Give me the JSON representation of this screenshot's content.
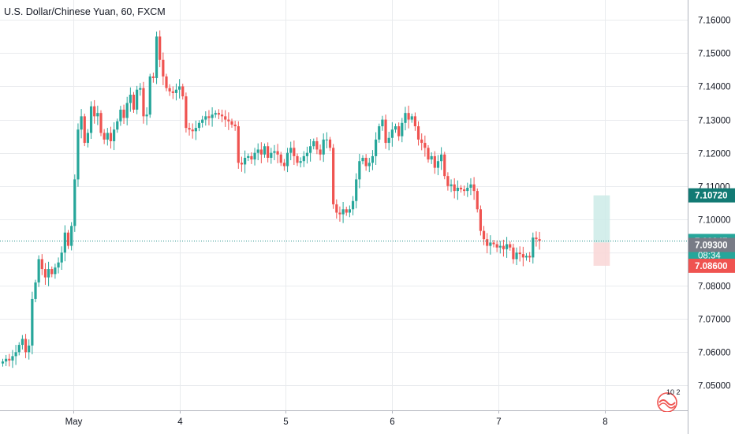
{
  "title": "U.S. Dollar/Chinese Yuan, 60, FXCM",
  "colors": {
    "up": "#26a69a",
    "down": "#ef5350",
    "grid": "#e9ebee",
    "axis_text": "#131722",
    "current_line": "#1f8f8a",
    "target_fill": "#cdebe8",
    "stop_fill": "#f9d6d6",
    "label_target": "#127a74",
    "label_price": "#26a69a",
    "label_entry": "#787b86",
    "label_stop": "#ef5350"
  },
  "price_labels": {
    "target": "7.10720",
    "current": "7.09347",
    "countdown": "08:34",
    "entry": "7.09300",
    "stop": "7.08600",
    "hidden": "7.0"
  },
  "logo_icon": "tradingview-logo-icon",
  "logo_text": "10 2",
  "chart_data": {
    "type": "candlestick",
    "title": "U.S. Dollar/Chinese Yuan, 60, FXCM",
    "interval": "60",
    "source": "FXCM",
    "y_ticks": [
      "7.16000",
      "7.15000",
      "7.14000",
      "7.13000",
      "7.12000",
      "7.11000",
      "7.10000",
      "7.09000",
      "7.08000",
      "7.07000",
      "7.06000",
      "7.05000"
    ],
    "ylim": [
      7.0425,
      7.166
    ],
    "x_ticks": [
      {
        "label": "May",
        "i": 21.5
      },
      {
        "label": "4",
        "i": 54
      },
      {
        "label": "5",
        "i": 86.5
      },
      {
        "label": "6",
        "i": 119
      },
      {
        "label": "7",
        "i": 151.5
      },
      {
        "label": "8",
        "i": 184
      }
    ],
    "candles_open_close": [
      [
        7.0566,
        7.0572
      ],
      [
        7.0572,
        7.058
      ],
      [
        7.058,
        7.0575
      ],
      [
        7.0575,
        7.0588
      ],
      [
        7.0588,
        7.06
      ],
      [
        7.06,
        7.0622
      ],
      [
        7.0622,
        7.064
      ],
      [
        7.064,
        7.06
      ],
      [
        7.06,
        7.062
      ],
      [
        7.062,
        7.076
      ],
      [
        7.076,
        7.081
      ],
      [
        7.081,
        7.088
      ],
      [
        7.088,
        7.085
      ],
      [
        7.085,
        7.0825
      ],
      [
        7.0825,
        7.085
      ],
      [
        7.085,
        7.0835
      ],
      [
        7.0835,
        7.0855
      ],
      [
        7.0855,
        7.087
      ],
      [
        7.087,
        7.09
      ],
      [
        7.09,
        7.096
      ],
      [
        7.096,
        7.092
      ],
      [
        7.092,
        7.098
      ],
      [
        7.098,
        7.112
      ],
      [
        7.112,
        7.127
      ],
      [
        7.127,
        7.131
      ],
      [
        7.131,
        7.123
      ],
      [
        7.123,
        7.126
      ],
      [
        7.126,
        7.134
      ],
      [
        7.134,
        7.131
      ],
      [
        7.131,
        7.132
      ],
      [
        7.132,
        7.126
      ],
      [
        7.126,
        7.124
      ],
      [
        7.124,
        7.126
      ],
      [
        7.126,
        7.1235
      ],
      [
        7.1235,
        7.127
      ],
      [
        7.127,
        7.1295
      ],
      [
        7.1295,
        7.133
      ],
      [
        7.133,
        7.1305
      ],
      [
        7.1305,
        7.135
      ],
      [
        7.135,
        7.1375
      ],
      [
        7.1375,
        7.133
      ],
      [
        7.133,
        7.139
      ],
      [
        7.139,
        7.1395
      ],
      [
        7.1395,
        7.131
      ],
      [
        7.131,
        7.1315
      ],
      [
        7.1315,
        7.143
      ],
      [
        7.143,
        7.1425
      ],
      [
        7.1425,
        7.155
      ],
      [
        7.155,
        7.148
      ],
      [
        7.148,
        7.143
      ],
      [
        7.143,
        7.1395
      ],
      [
        7.1395,
        7.1385
      ],
      [
        7.1385,
        7.138
      ],
      [
        7.138,
        7.139
      ],
      [
        7.139,
        7.14
      ],
      [
        7.14,
        7.137
      ],
      [
        7.137,
        7.1275
      ],
      [
        7.1275,
        7.127
      ],
      [
        7.127,
        7.1265
      ],
      [
        7.1265,
        7.1275
      ],
      [
        7.1275,
        7.129
      ],
      [
        7.129,
        7.13
      ],
      [
        7.13,
        7.131
      ],
      [
        7.131,
        7.1305
      ],
      [
        7.1305,
        7.1315
      ],
      [
        7.1315,
        7.132
      ],
      [
        7.132,
        7.1315
      ],
      [
        7.1315,
        7.131
      ],
      [
        7.131,
        7.13
      ],
      [
        7.13,
        7.1295
      ],
      [
        7.1295,
        7.1285
      ],
      [
        7.1285,
        7.128
      ],
      [
        7.128,
        7.117
      ],
      [
        7.117,
        7.1165
      ],
      [
        7.1165,
        7.1185
      ],
      [
        7.1185,
        7.119
      ],
      [
        7.119,
        7.118
      ],
      [
        7.118,
        7.12
      ],
      [
        7.12,
        7.121
      ],
      [
        7.121,
        7.1195
      ],
      [
        7.1195,
        7.122
      ],
      [
        7.122,
        7.1185
      ],
      [
        7.1185,
        7.12
      ],
      [
        7.12,
        7.1205
      ],
      [
        7.1205,
        7.1195
      ],
      [
        7.1195,
        7.117
      ],
      [
        7.117,
        7.116
      ],
      [
        7.116,
        7.12
      ],
      [
        7.12,
        7.1215
      ],
      [
        7.1215,
        7.119
      ],
      [
        7.119,
        7.117
      ],
      [
        7.117,
        7.1175
      ],
      [
        7.1175,
        7.119
      ],
      [
        7.119,
        7.12
      ],
      [
        7.12,
        7.122
      ],
      [
        7.122,
        7.1235
      ],
      [
        7.1235,
        7.121
      ],
      [
        7.121,
        7.1195
      ],
      [
        7.1195,
        7.124
      ],
      [
        7.124,
        7.124
      ],
      [
        7.124,
        7.1215
      ],
      [
        7.1215,
        7.1045
      ],
      [
        7.1045,
        7.102
      ],
      [
        7.102,
        7.1015
      ],
      [
        7.1015,
        7.103
      ],
      [
        7.103,
        7.102
      ],
      [
        7.102,
        7.103
      ],
      [
        7.103,
        7.1055
      ],
      [
        7.1055,
        7.112
      ],
      [
        7.112,
        7.1175
      ],
      [
        7.1175,
        7.1185
      ],
      [
        7.1185,
        7.116
      ],
      [
        7.116,
        7.117
      ],
      [
        7.117,
        7.119
      ],
      [
        7.119,
        7.124
      ],
      [
        7.124,
        7.128
      ],
      [
        7.128,
        7.13
      ],
      [
        7.13,
        7.123
      ],
      [
        7.123,
        7.1245
      ],
      [
        7.1245,
        7.127
      ],
      [
        7.127,
        7.128
      ],
      [
        7.128,
        7.125
      ],
      [
        7.125,
        7.129
      ],
      [
        7.129,
        7.132
      ],
      [
        7.132,
        7.13
      ],
      [
        7.13,
        7.131
      ],
      [
        7.131,
        7.128
      ],
      [
        7.128,
        7.124
      ],
      [
        7.124,
        7.123
      ],
      [
        7.123,
        7.1215
      ],
      [
        7.1215,
        7.118
      ],
      [
        7.118,
        7.119
      ],
      [
        7.119,
        7.1155
      ],
      [
        7.1155,
        7.1175
      ],
      [
        7.1175,
        7.1195
      ],
      [
        7.1195,
        7.113
      ],
      [
        7.113,
        7.11
      ],
      [
        7.11,
        7.1105
      ],
      [
        7.1105,
        7.1085
      ],
      [
        7.1085,
        7.1095
      ],
      [
        7.1095,
        7.109
      ],
      [
        7.109,
        7.1085
      ],
      [
        7.1085,
        7.1095
      ],
      [
        7.1095,
        7.1105
      ],
      [
        7.1105,
        7.1085
      ],
      [
        7.1085,
        7.103
      ],
      [
        7.103,
        7.0965
      ],
      [
        7.0965,
        7.094
      ],
      [
        7.094,
        7.092
      ],
      [
        7.092,
        7.093
      ],
      [
        7.093,
        7.0925
      ],
      [
        7.0925,
        7.0915
      ],
      [
        7.0915,
        7.092
      ],
      [
        7.092,
        7.091
      ],
      [
        7.091,
        7.0925
      ],
      [
        7.0925,
        7.0915
      ],
      [
        7.0915,
        7.088
      ],
      [
        7.088,
        7.09
      ],
      [
        7.09,
        7.0895
      ],
      [
        7.0895,
        7.0885
      ],
      [
        7.0885,
        7.089
      ],
      [
        7.089,
        7.0885
      ],
      [
        7.0885,
        7.0945
      ],
      [
        7.0945,
        7.094
      ],
      [
        7.094,
        7.0935
      ]
    ],
    "trade_levels": {
      "target": 7.1072,
      "entry": 7.093,
      "stop": 7.086,
      "current": 7.09347
    },
    "position_box_i": [
      180.5,
      185.5
    ]
  }
}
